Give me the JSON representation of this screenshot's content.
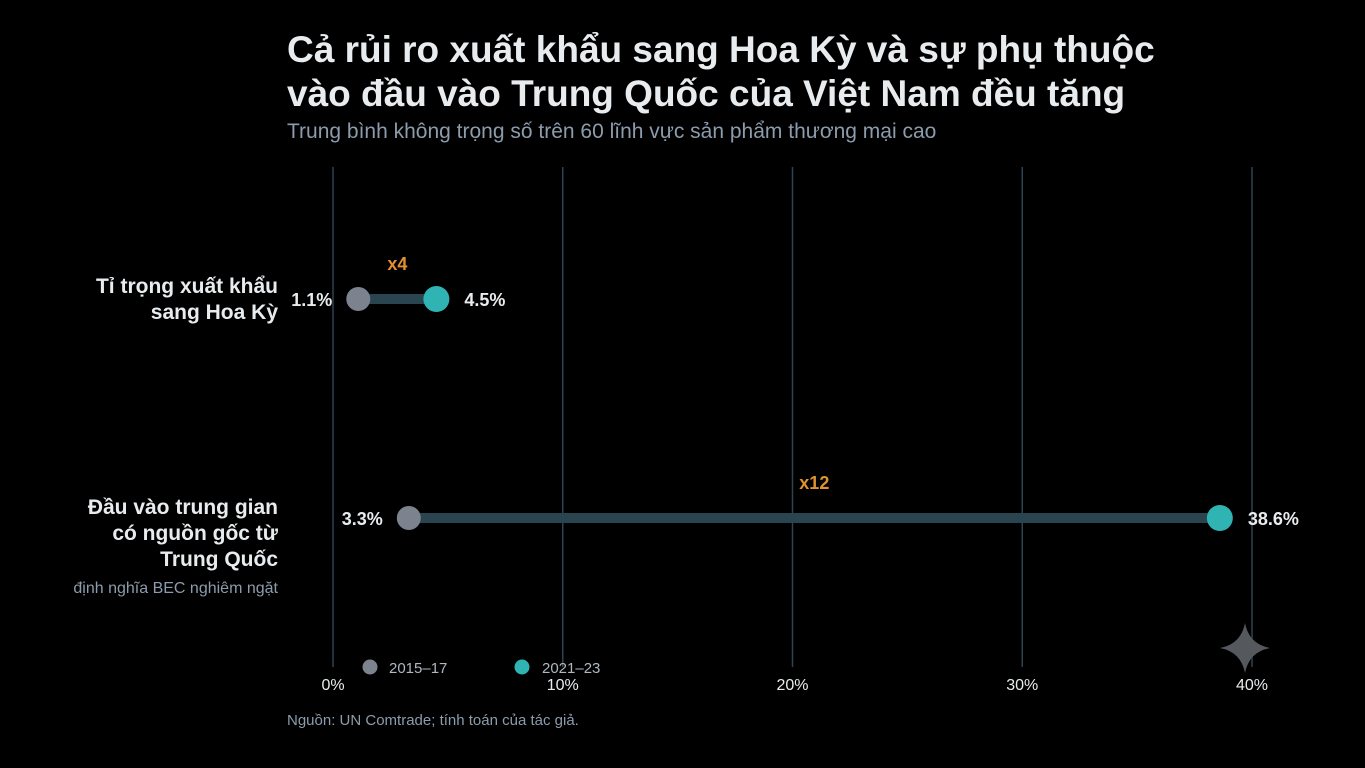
{
  "title_line1": "Cả rủi ro xuất khẩu sang Hoa Kỳ và sự phụ thuộc",
  "title_line2": "vào đầu vào Trung Quốc của Việt Nam đều tăng",
  "subtitle": "Trung bình không trọng số trên 60 lĩnh vực sản phẩm thương mại cao",
  "source": "Nguồn: UN Comtrade; tính toán của tác giả.",
  "colors": {
    "period1": "#7d838e",
    "period2": "#30b3b3",
    "connector": "#2a4550",
    "multiplier": "#e0922e",
    "grid": "#2e4250"
  },
  "chart_data": {
    "type": "dumbbell",
    "xlim": [
      0,
      40
    ],
    "xticks": [
      "0%",
      "10%",
      "20%",
      "30%",
      "40%"
    ],
    "grid": true,
    "legend_position": "bottom-left",
    "legend": [
      "2015–17",
      "2021–23"
    ],
    "rows": [
      {
        "label_lines": [
          "Tỉ trọng xuất khẩu",
          "sang Hoa Kỳ"
        ],
        "note": "",
        "value_2015_17": 1.1,
        "value_2021_23": 4.5,
        "label_2015_17": "1.1%",
        "label_2021_23": "4.5%",
        "multiplier": "x4"
      },
      {
        "label_lines": [
          "Đầu vào trung gian",
          "có nguồn gốc từ",
          "Trung Quốc"
        ],
        "note": "định nghĩa BEC nghiêm ngặt",
        "value_2015_17": 3.3,
        "value_2021_23": 38.6,
        "label_2015_17": "3.3%",
        "label_2021_23": "38.6%",
        "multiplier": "x12"
      }
    ]
  }
}
